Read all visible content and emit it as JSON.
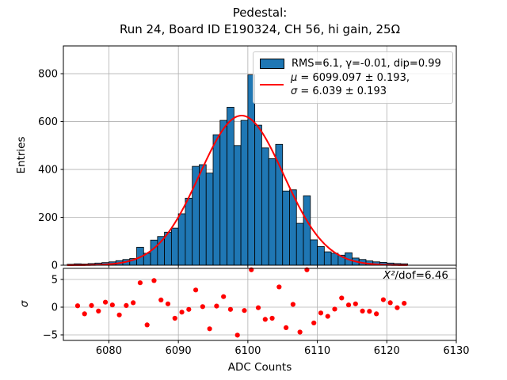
{
  "title": {
    "line1": "Pedestal:",
    "line2": "Run 24, Board ID E190324, CH 56, hi gain, 25Ω"
  },
  "legend": {
    "hist_label": "RMS=6.1, γ=-0.01, dip=0.99",
    "mu_symbol": "μ",
    "mu_text": " = 6099.097 ± 0.193,",
    "sigma_symbol": "σ",
    "sigma_text": " = 6.039 ± 0.193"
  },
  "annotation": {
    "chi2_symbol": "X²",
    "chi2_rest": "/dof=6.46"
  },
  "colors": {
    "bar_fill": "#1f77b4",
    "bar_edge": "#000000",
    "fit_line": "#ff0000",
    "residual_dot": "#ff0000",
    "grid": "#b0b0b0",
    "frame": "#000000"
  },
  "chart_data": {
    "type": "bar",
    "subtype": "histogram-with-gaussian-fit-and-residuals",
    "xlabel": "ADC Counts",
    "xlim": [
      6073.45,
      6130.0
    ],
    "x_tick_values": [
      6080,
      6090,
      6100,
      6110,
      6120,
      6130
    ],
    "x_tick_labels": [
      "6080",
      "6090",
      "6100",
      "6110",
      "6120",
      "6130"
    ],
    "main_panel": {
      "ylabel": "Entries",
      "ylim": [
        0,
        916
      ],
      "y_tick_values": [
        0,
        200,
        400,
        600,
        800
      ],
      "y_tick_labels": [
        "0",
        "200",
        "400",
        "600",
        "800"
      ],
      "bins_start": 6074,
      "bin_width": 1,
      "counts": [
        4,
        6,
        5,
        7,
        9,
        11,
        14,
        19,
        24,
        28,
        75,
        50,
        105,
        120,
        138,
        155,
        215,
        280,
        413,
        420,
        385,
        545,
        605,
        660,
        500,
        605,
        795,
        585,
        490,
        445,
        505,
        310,
        315,
        175,
        290,
        106,
        78,
        56,
        50,
        42,
        52,
        30,
        24,
        18,
        14,
        12,
        9,
        7,
        6
      ],
      "fit": {
        "shape": "gaussian",
        "amplitude": 625,
        "mean": 6099.097,
        "sigma": 6.039,
        "draw_range": [
          6074.0,
          6123.0
        ]
      }
    },
    "residual_panel": {
      "ylabel": "σ",
      "ylim": [
        -6,
        7
      ],
      "y_tick_values": [
        5,
        0,
        -5
      ],
      "y_tick_labels": [
        "5",
        "0",
        "−5"
      ],
      "bins_start": 6075,
      "bin_width": 1,
      "values": [
        0.25,
        -1.2,
        0.3,
        -0.7,
        0.9,
        0.4,
        -1.4,
        0.3,
        0.8,
        4.4,
        -3.2,
        4.8,
        1.3,
        0.6,
        -2.0,
        -0.9,
        -0.4,
        3.1,
        0.1,
        -3.9,
        0.2,
        1.9,
        -0.4,
        -5.05,
        -0.6,
        6.75,
        -0.1,
        -2.2,
        -2.0,
        3.65,
        -3.7,
        0.5,
        -4.5,
        6.75,
        -2.85,
        -1.05,
        -1.65,
        -0.35,
        1.65,
        0.4,
        0.6,
        -0.7,
        -0.75,
        -1.2,
        1.35,
        0.8,
        -0.1,
        0.7
      ]
    }
  }
}
